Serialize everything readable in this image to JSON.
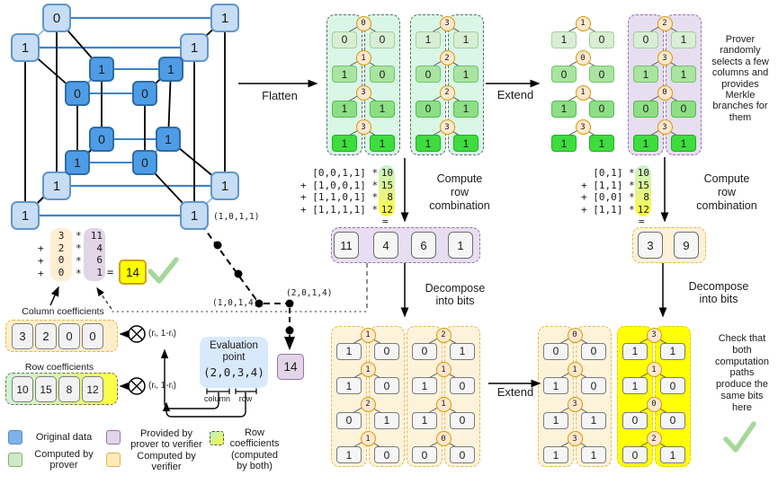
{
  "hypercube": {
    "outer": [
      "0",
      "1",
      "1",
      "1",
      "1",
      "1",
      "1",
      "1"
    ],
    "inner": [
      "1",
      "1",
      "0",
      "0",
      "0",
      "1",
      "1",
      "0"
    ],
    "corner_label": "(1,0,1,1)"
  },
  "flow": {
    "flatten": "Flatten",
    "extend_top": "Extend",
    "extend_bottom": "Extend",
    "compute_left": "Compute\nrow\ncombination",
    "compute_right": "Compute\nrow\ncombination",
    "decompose_left": "Decompose\ninto bits",
    "decompose_right": "Decompose\ninto bits"
  },
  "notes": {
    "prover": "Prover\nrandomly\nselects a few\ncolumns and\nprovides\nMerkle\nbranches for\nthem",
    "check": "Check that\nboth\ncomputation\npaths\nproduce the\nsame bits\nhere"
  },
  "equations": {
    "left": {
      "terms": "  [0,0,1,1] *\n+ [1,0,0,1] *\n+ [1,1,0,1] *\n+ [1,1,1,1] *",
      "coeffs": "10\n15\n 8\n12",
      "equals": "="
    },
    "right": {
      "terms": "  [0,1] *\n+ [1,1] *\n+ [0,0] *\n+ [1,1] *",
      "coeffs": "10\n15\n 8\n12",
      "equals": "="
    },
    "column": {
      "signs": " \n+\n+\n+",
      "coeffs": "3\n2\n0\n0",
      "stars": "*\n*\n*\n*",
      "values": "11\n 4\n 6\n 1",
      "equals": "=",
      "result": "14"
    }
  },
  "results": {
    "row_left": [
      "11",
      "4",
      "6",
      "1"
    ],
    "row_right": [
      "3",
      "9"
    ],
    "point_value": "14"
  },
  "point_labels": {
    "p1": "(1,0,1,4)",
    "p2": "(2,0,1,4)"
  },
  "eval_point": {
    "title": "Evaluation\npoint",
    "value": "(2,0,3,4)",
    "column_label": "column",
    "row_label": "row"
  },
  "coefficients": {
    "column_label": "Column coefficients",
    "column_values": [
      "3",
      "2",
      "0",
      "0"
    ],
    "row_label": "Row coefficients",
    "row_values": [
      "10",
      "15",
      "8",
      "12"
    ],
    "r_label": "(rᵢ, 1-rᵢ)"
  },
  "trees": {
    "flatten": [
      {
        "rows": [
          [
            0,
            0,
            0
          ],
          [
            1,
            1,
            0
          ],
          [
            3,
            1,
            1
          ],
          [
            3,
            1,
            1
          ]
        ]
      },
      {
        "rows": [
          [
            3,
            1,
            1
          ],
          [
            2,
            0,
            1
          ],
          [
            2,
            0,
            1
          ],
          [
            3,
            1,
            1
          ]
        ]
      }
    ],
    "extend": [
      {
        "rows": [
          [
            1,
            1,
            0
          ],
          [
            0,
            0,
            0
          ],
          [
            1,
            1,
            0
          ],
          [
            3,
            1,
            1
          ]
        ]
      },
      {
        "rows": [
          [
            2,
            0,
            1
          ],
          [
            3,
            1,
            1
          ],
          [
            0,
            0,
            0
          ],
          [
            3,
            1,
            1
          ]
        ]
      }
    ],
    "decompose_left": [
      {
        "rows": [
          [
            1,
            1,
            0
          ],
          [
            1,
            1,
            0
          ],
          [
            2,
            0,
            1
          ],
          [
            1,
            1,
            0
          ]
        ]
      },
      {
        "rows": [
          [
            2,
            0,
            1
          ],
          [
            1,
            1,
            0
          ],
          [
            1,
            1,
            0
          ],
          [
            0,
            0,
            0
          ]
        ]
      }
    ],
    "decompose_right": [
      {
        "rows": [
          [
            0,
            0,
            0
          ],
          [
            1,
            1,
            0
          ],
          [
            3,
            1,
            1
          ],
          [
            3,
            1,
            1
          ]
        ]
      },
      {
        "rows": [
          [
            3,
            1,
            1
          ],
          [
            1,
            1,
            0
          ],
          [
            0,
            0,
            0
          ],
          [
            2,
            0,
            1
          ]
        ]
      }
    ]
  },
  "legend": [
    {
      "label": "Original data",
      "type": "blue"
    },
    {
      "label": "Computed by\nprover",
      "type": "green"
    },
    {
      "label": "Provided by\nprover to verifier",
      "type": "purple"
    },
    {
      "label": "Computed by\nverifier",
      "type": "yellow"
    },
    {
      "label": "Row\ncoefficients\n(computed\nby both)",
      "type": "gradient"
    }
  ],
  "colors": {
    "original_data": "#7fb2e8",
    "computed_by_prover": "#cde9c8",
    "provided_by_prover": "#e1d5e7",
    "computed_by_verifier": "#ffeab8",
    "highlight_yellow": "#ffff05",
    "result_yellow": "#fdff00",
    "check_green": "#a6d89b"
  }
}
